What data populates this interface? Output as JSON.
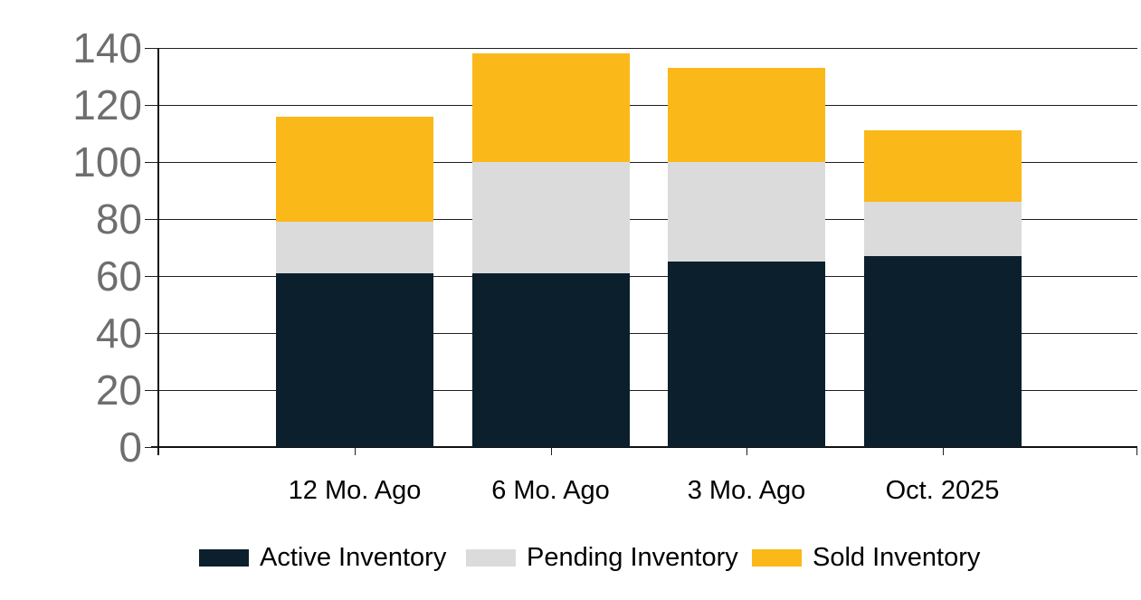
{
  "chart_data": {
    "type": "bar",
    "stacked": true,
    "title": "",
    "xlabel": "",
    "ylabel": "",
    "categories": [
      "12 Mo. Ago",
      "6 Mo. Ago",
      "3 Mo. Ago",
      "Oct. 2025"
    ],
    "series": [
      {
        "name": "Active Inventory",
        "color": "#0c1f2c",
        "values": [
          61,
          61,
          65,
          67
        ]
      },
      {
        "name": "Pending Inventory",
        "color": "#dbdbdb",
        "values": [
          18,
          39,
          35,
          19
        ]
      },
      {
        "name": "Sold Inventory",
        "color": "#fbb819",
        "values": [
          37,
          38,
          33,
          25
        ]
      }
    ],
    "stack_totals": [
      116,
      138,
      133,
      111
    ],
    "ylim": [
      0,
      140
    ],
    "yticks": [
      0,
      20,
      40,
      60,
      80,
      100,
      120,
      140
    ],
    "grid": true,
    "legend_position": "bottom"
  },
  "colors": {
    "background": "#ffffff",
    "grid_line": "#1f1f1f",
    "axis_line": "#111111",
    "y_label_text": "#6e6e6e",
    "x_label_text": "#000000",
    "legend_text": "#000000"
  }
}
